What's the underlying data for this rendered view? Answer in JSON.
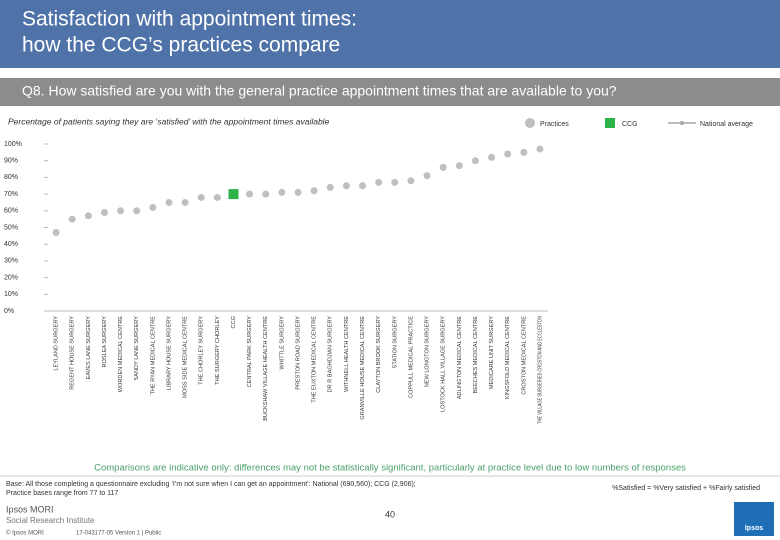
{
  "header": {
    "title_line1": "Satisfaction with appointment times:",
    "title_line2": "how the CCG’s practices compare"
  },
  "question": "Q8. How satisfied are you with the general practice appointment times that are available to you?",
  "chart_data": {
    "type": "dot",
    "subtitle": "Percentage of patients saying they are ‘satisfied’ with the appointment times available",
    "legend": {
      "practices": "Practices",
      "ccg": "CCG",
      "national": "National average"
    },
    "categories": [
      "LEYLAND SURGERY",
      "REGENT HOUSE SURGERY",
      "EAVES LANE SURGERY",
      "ROSLEA SURGERY",
      "WORDEN MEDICAL CENTRE",
      "SANDY LANE SURGERY",
      "THE RYAN MEDICAL CENTRE",
      "LIBRARY HOUSE SURGERY",
      "MOSS SIDE MEDICAL CENTRE",
      "THE CHORLEY SURGERY",
      "THE SURGERY CHORLEY",
      "CCG",
      "CENTRAL PARK SURGERY",
      "BUCKSHAW VILLAGE HEALTH CENTRE",
      "WHITTLE SURGERY",
      "PRESTON ROAD SURGERY",
      "THE EUXTON MEDICAL CENTRE",
      "DR R BAGHDJIAN SURGERY",
      "WITHNELL HEALTH CENTRE",
      "GRANVILLE HOUSE MEDICAL CENTRE",
      "CLAYTON BROOK SURGERY",
      "STATION SURGERY",
      "COPPULL MEDICAL PRACTICE",
      "NEW LONGTON SURGERY",
      "LOSTOCK HALL VILLAGE SURGERY",
      "ADLINGTON MEDICAL CENTRE",
      "BEECHES MEDICAL CENTRE",
      "MEDICARE UNIT SURGERY",
      "KINGSFOLD MEDICAL CENTRE",
      "CROSTON MEDICAL CENTRE",
      "THE VILLAGE SURGERIES CROSTON AND ECCLESTON"
    ],
    "values": [
      47,
      55,
      57,
      59,
      60,
      60,
      62,
      65,
      65,
      68,
      68,
      70,
      70,
      70,
      71,
      71,
      72,
      74,
      75,
      75,
      77,
      77,
      78,
      81,
      86,
      87,
      90,
      92,
      94,
      95,
      97
    ],
    "color": "#bfbfbf",
    "highlight": "CCG",
    "highlight_color": "#2db34a",
    "national_color": "#a6a6a6",
    "ylim": [
      0,
      100
    ],
    "yticks": [
      {
        "value": 0,
        "label": "0%"
      },
      {
        "value": 10,
        "label": "10%"
      },
      {
        "value": 20,
        "label": "20%"
      },
      {
        "value": 30,
        "label": "30%"
      },
      {
        "value": 40,
        "label": "40%"
      },
      {
        "value": 50,
        "label": "50%"
      },
      {
        "value": 60,
        "label": "60%"
      },
      {
        "value": 70,
        "label": "70%"
      },
      {
        "value": 80,
        "label": "80%"
      },
      {
        "value": 90,
        "label": "90%"
      },
      {
        "value": 100,
        "label": "100%"
      }
    ]
  },
  "footer": {
    "note": "Comparisons are indicative only: differences may not be statistically significant, particularly at practice level due to low numbers of responses",
    "base1": "Base: All those completing a questionnaire excluding ‘I’m not sure when I can get an appointment’: National (690,560); CCG (2,906);",
    "base2": "Practice bases range from 77 to 117",
    "definition": "%Satisfied = %Very satisfied + %Fairly satisfied",
    "page": "40",
    "logo1": "Ipsos MORI",
    "logo2": "Social Research Institute",
    "copyright": "© Ipsos MORI",
    "version": "17-043177-05 Version 1 | Public",
    "brand": "Ipsos"
  }
}
